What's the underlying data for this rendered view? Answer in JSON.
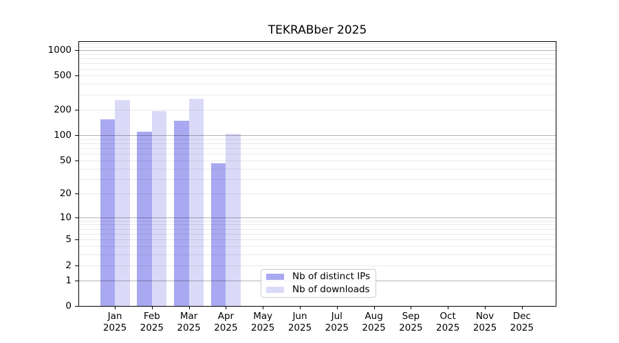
{
  "chart_data": {
    "type": "bar",
    "title": "TEKRABber 2025",
    "categories": [
      "Jan",
      "Feb",
      "Mar",
      "Apr",
      "May",
      "Jun",
      "Jul",
      "Aug",
      "Sep",
      "Oct",
      "Nov",
      "Dec"
    ],
    "category_year": "2025",
    "series": [
      {
        "name": "Nb of distinct IPs",
        "color": "#a9a9f2",
        "values": [
          153,
          110,
          149,
          46,
          0,
          0,
          0,
          0,
          0,
          0,
          0,
          0
        ]
      },
      {
        "name": "Nb of downloads",
        "color": "#dadaf8",
        "values": [
          258,
          190,
          269,
          103,
          0,
          0,
          0,
          0,
          0,
          0,
          0,
          0
        ]
      }
    ],
    "yscale": "log1p",
    "yticks": [
      0,
      1,
      2,
      5,
      10,
      20,
      50,
      100,
      200,
      500,
      1000
    ],
    "ylim": [
      0,
      1250
    ],
    "grid": "both",
    "legend_position": "lower center"
  }
}
